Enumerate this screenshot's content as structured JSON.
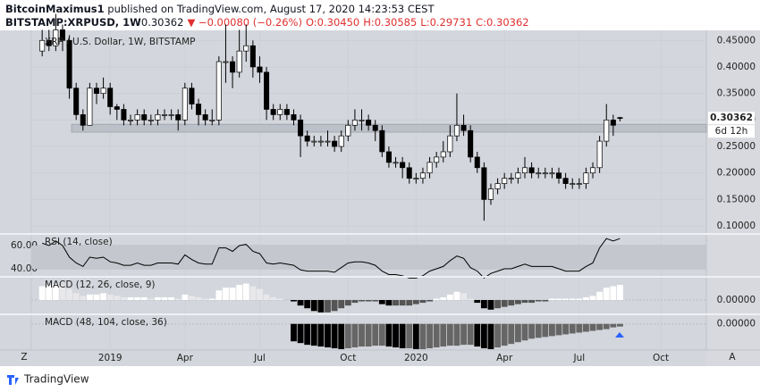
{
  "header": {
    "author": "BitcoinMaximus1",
    "published": "published on TradingView.com, August 17, 2020 14:23:53 CEST",
    "symbol": "BITSTAMP:XRPUSD, 1W",
    "last": "0.30362",
    "change": "▼ −0.00080 (−0.26%)",
    "open": "O:0.30450",
    "high": "H:0.30585",
    "low": "L:0.29731",
    "close": "C:0.30362"
  },
  "footer": {
    "brand": "TradingView",
    "zoom": "Z",
    "auto": "A"
  },
  "chart_data": [
    {
      "type": "candlestick",
      "title": "XRP / U.S. Dollar, 1W, BITSTAMP",
      "up_color": "#ffffff",
      "down_color": "#000000",
      "open": [
        0.43,
        0.45,
        0.44,
        0.47,
        0.45,
        0.36,
        0.31,
        0.29,
        0.36,
        0.35,
        0.36,
        0.325,
        0.32,
        0.3,
        0.3,
        0.31,
        0.3,
        0.3,
        0.31,
        0.31,
        0.31,
        0.3,
        0.36,
        0.33,
        0.31,
        0.3,
        0.3,
        0.41,
        0.41,
        0.39,
        0.43,
        0.44,
        0.4,
        0.39,
        0.32,
        0.31,
        0.32,
        0.31,
        0.3,
        0.27,
        0.26,
        0.26,
        0.26,
        0.26,
        0.25,
        0.27,
        0.29,
        0.3,
        0.3,
        0.29,
        0.28,
        0.24,
        0.22,
        0.22,
        0.21,
        0.19,
        0.19,
        0.2,
        0.22,
        0.23,
        0.24,
        0.27,
        0.29,
        0.28,
        0.23,
        0.21,
        0.15,
        0.17,
        0.18,
        0.19,
        0.19,
        0.2,
        0.21,
        0.2,
        0.2,
        0.2,
        0.2,
        0.19,
        0.18,
        0.18,
        0.18,
        0.2,
        0.21,
        0.26,
        0.3,
        0.3045
      ],
      "high": [
        0.47,
        0.47,
        0.5,
        0.48,
        0.46,
        0.37,
        0.32,
        0.37,
        0.37,
        0.38,
        0.37,
        0.33,
        0.33,
        0.31,
        0.32,
        0.32,
        0.31,
        0.32,
        0.32,
        0.32,
        0.32,
        0.37,
        0.37,
        0.34,
        0.32,
        0.32,
        0.42,
        0.48,
        0.42,
        0.47,
        0.48,
        0.45,
        0.42,
        0.4,
        0.33,
        0.33,
        0.33,
        0.32,
        0.31,
        0.28,
        0.27,
        0.27,
        0.28,
        0.27,
        0.28,
        0.3,
        0.32,
        0.32,
        0.31,
        0.3,
        0.29,
        0.25,
        0.23,
        0.23,
        0.22,
        0.2,
        0.21,
        0.23,
        0.24,
        0.26,
        0.29,
        0.35,
        0.31,
        0.29,
        0.24,
        0.22,
        0.18,
        0.19,
        0.2,
        0.2,
        0.21,
        0.23,
        0.22,
        0.21,
        0.21,
        0.21,
        0.21,
        0.2,
        0.19,
        0.19,
        0.21,
        0.22,
        0.27,
        0.33,
        0.31,
        0.30585
      ],
      "low": [
        0.42,
        0.43,
        0.43,
        0.43,
        0.34,
        0.3,
        0.28,
        0.29,
        0.33,
        0.34,
        0.31,
        0.3,
        0.29,
        0.29,
        0.29,
        0.29,
        0.29,
        0.29,
        0.3,
        0.3,
        0.28,
        0.29,
        0.32,
        0.29,
        0.29,
        0.29,
        0.29,
        0.37,
        0.36,
        0.38,
        0.41,
        0.38,
        0.37,
        0.3,
        0.3,
        0.3,
        0.3,
        0.29,
        0.23,
        0.25,
        0.25,
        0.25,
        0.25,
        0.24,
        0.24,
        0.26,
        0.28,
        0.28,
        0.28,
        0.26,
        0.23,
        0.21,
        0.21,
        0.19,
        0.18,
        0.18,
        0.18,
        0.19,
        0.21,
        0.22,
        0.23,
        0.26,
        0.27,
        0.22,
        0.2,
        0.11,
        0.14,
        0.16,
        0.17,
        0.18,
        0.18,
        0.19,
        0.19,
        0.19,
        0.19,
        0.19,
        0.18,
        0.17,
        0.17,
        0.17,
        0.17,
        0.19,
        0.2,
        0.25,
        0.27,
        0.29731
      ],
      "close": [
        0.45,
        0.44,
        0.47,
        0.45,
        0.36,
        0.31,
        0.29,
        0.36,
        0.35,
        0.36,
        0.325,
        0.32,
        0.3,
        0.3,
        0.31,
        0.3,
        0.3,
        0.31,
        0.31,
        0.31,
        0.3,
        0.36,
        0.33,
        0.31,
        0.3,
        0.3,
        0.41,
        0.41,
        0.39,
        0.43,
        0.44,
        0.4,
        0.39,
        0.32,
        0.31,
        0.32,
        0.31,
        0.3,
        0.27,
        0.26,
        0.26,
        0.26,
        0.26,
        0.25,
        0.27,
        0.29,
        0.3,
        0.3,
        0.29,
        0.28,
        0.24,
        0.22,
        0.22,
        0.21,
        0.19,
        0.19,
        0.2,
        0.22,
        0.23,
        0.24,
        0.27,
        0.29,
        0.28,
        0.23,
        0.21,
        0.15,
        0.17,
        0.18,
        0.19,
        0.19,
        0.2,
        0.21,
        0.2,
        0.2,
        0.2,
        0.2,
        0.19,
        0.18,
        0.18,
        0.18,
        0.2,
        0.21,
        0.26,
        0.3,
        0.29,
        0.30362
      ],
      "zone": [
        0.277,
        0.292
      ],
      "zone_color": "#bcc0c8",
      "price_label": "0.30362",
      "countdown": "6d 12h",
      "ylim": [
        0.085,
        0.469
      ],
      "yticks": [
        {
          "value": 0.1,
          "label": "0.10000"
        },
        {
          "value": 0.15,
          "label": "0.15000"
        },
        {
          "value": 0.2,
          "label": "0.20000"
        },
        {
          "value": 0.25,
          "label": "0.25000"
        },
        {
          "value": 0.3,
          "label": "0.30000"
        },
        {
          "value": 0.35,
          "label": "0.35000"
        },
        {
          "value": 0.4,
          "label": "0.40000"
        },
        {
          "value": 0.45,
          "label": "0.45000"
        }
      ],
      "xlim": [
        -1.6,
        97.7
      ],
      "xticks": [
        {
          "value": 10,
          "label": "2019"
        },
        {
          "value": 21,
          "label": "Apr"
        },
        {
          "value": 32,
          "label": "Jul"
        },
        {
          "value": 45,
          "label": "Oct"
        },
        {
          "value": 55,
          "label": "2020"
        },
        {
          "value": 68,
          "label": "Apr"
        },
        {
          "value": 79,
          "label": "Jul"
        },
        {
          "value": 91,
          "label": "Oct"
        }
      ]
    },
    {
      "type": "line",
      "title": "RSI (14, close)",
      "color": "#000000",
      "band_color": "#c4c7ce",
      "values": [
        62,
        60,
        64,
        60,
        50,
        45,
        42,
        50,
        49,
        50,
        46,
        45,
        43,
        43,
        45,
        43,
        43,
        45,
        45,
        45,
        44,
        52,
        48,
        45,
        44,
        44,
        58,
        58,
        55,
        60,
        61,
        55,
        53,
        45,
        44,
        45,
        44,
        43,
        39,
        38,
        38,
        38,
        38,
        37,
        41,
        45,
        46,
        46,
        45,
        43,
        38,
        35,
        35,
        34,
        32,
        32,
        34,
        38,
        40,
        42,
        47,
        51,
        49,
        41,
        38,
        32,
        36,
        38,
        40,
        40,
        42,
        44,
        42,
        42,
        42,
        42,
        40,
        38,
        38,
        38,
        42,
        45,
        58,
        66,
        64,
        66
      ],
      "ylim": [
        34.6,
        70
      ],
      "yticks": [
        {
          "value": 40,
          "label": "40.00"
        },
        {
          "value": 60,
          "label": "60.00"
        }
      ]
    },
    {
      "type": "histogram",
      "title": "MACD (12, 26, close, 9)",
      "colors": {
        "pos_rising": "#ffffff",
        "pos_falling": "#e8e8ea",
        "neg_falling": "#000000",
        "neg_rising": "#555555"
      },
      "values": [
        0.01,
        0.011,
        0.012,
        0.011,
        0.008,
        0.005,
        0.003,
        0.004,
        0.004,
        0.005,
        0.004,
        0.003,
        0.002,
        0.002,
        0.002,
        0.002,
        0.001,
        0.002,
        0.002,
        0.002,
        0.001,
        0.004,
        0.003,
        0.002,
        0.001,
        0.001,
        0.007,
        0.009,
        0.009,
        0.011,
        0.012,
        0.01,
        0.008,
        0.004,
        0.002,
        0.001,
        0,
        -0.001,
        -0.004,
        -0.006,
        -0.008,
        -0.009,
        -0.009,
        -0.008,
        -0.006,
        -0.004,
        -0.002,
        -0.001,
        -0.001,
        -0.001,
        -0.003,
        -0.004,
        -0.004,
        -0.004,
        -0.004,
        -0.003,
        -0.002,
        -0.001,
        0.001,
        0.002,
        0.004,
        0.006,
        0.005,
        0.001,
        -0.002,
        -0.006,
        -0.007,
        -0.006,
        -0.005,
        -0.004,
        -0.003,
        -0.002,
        -0.002,
        -0.001,
        -0.001,
        0.001,
        0.001,
        0.001,
        0.001,
        0.001,
        0.002,
        0.003,
        0.006,
        0.009,
        0.01,
        0.011
      ],
      "ylim": [
        -0.0091,
        0.0169
      ],
      "yticks": [
        {
          "value": 0,
          "label": "0.00000"
        }
      ]
    },
    {
      "type": "histogram",
      "title": "MACD (48, 104, close, 36)",
      "colors": {
        "pos_rising": "#ffffff",
        "pos_falling": "#e8e8ea",
        "neg_falling": "#000000",
        "neg_rising": "#666666"
      },
      "values": [
        null,
        null,
        null,
        null,
        null,
        null,
        null,
        null,
        null,
        null,
        null,
        null,
        null,
        null,
        null,
        null,
        null,
        null,
        null,
        null,
        null,
        null,
        null,
        null,
        null,
        null,
        null,
        null,
        null,
        null,
        null,
        null,
        null,
        null,
        null,
        null,
        null,
        -0.02,
        -0.022,
        -0.024,
        -0.025,
        -0.026,
        -0.027,
        -0.028,
        -0.029,
        -0.028,
        -0.027,
        -0.026,
        -0.026,
        -0.025,
        -0.025,
        -0.026,
        -0.027,
        -0.028,
        -0.028,
        -0.029,
        -0.029,
        -0.028,
        -0.027,
        -0.026,
        -0.025,
        -0.025,
        -0.024,
        -0.024,
        -0.026,
        -0.028,
        -0.029,
        -0.027,
        -0.025,
        -0.023,
        -0.021,
        -0.019,
        -0.017,
        -0.016,
        -0.015,
        -0.014,
        -0.013,
        -0.012,
        -0.011,
        -0.01,
        -0.009,
        -0.008,
        -0.007,
        -0.006,
        -0.004,
        -0.003
      ],
      "ylim": [
        -0.03,
        0.011
      ],
      "yticks": [
        {
          "value": 0,
          "label": "0.00000"
        }
      ]
    }
  ]
}
